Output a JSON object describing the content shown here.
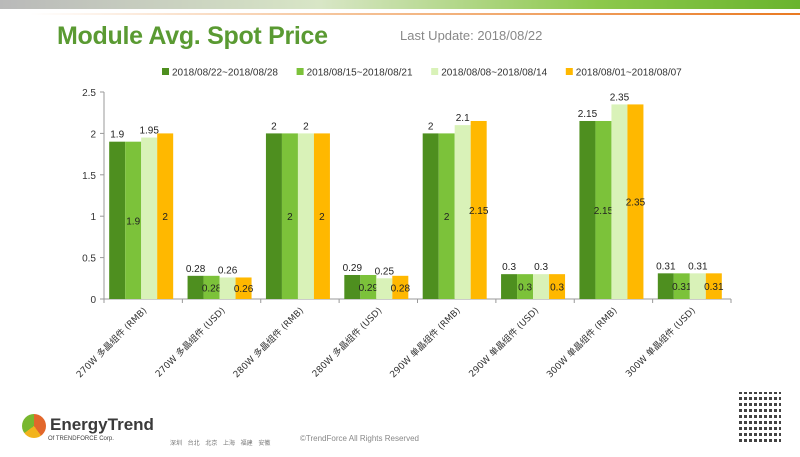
{
  "header": {
    "title": "Module Avg. Spot Price",
    "last_update": "Last Update: 2018/08/22"
  },
  "footer": {
    "brand": "EnergyTrend",
    "brand_sub": "Of TRENDFORCE Corp.",
    "cities": "深圳 台北 北京 上海 福建 安徽",
    "copyright": "©TrendForce All Rights Reserved"
  },
  "chart_data": {
    "type": "bar",
    "title": "",
    "xlabel": "",
    "ylabel": "",
    "ylim": [
      0,
      2.5
    ],
    "yticks": [
      "0",
      "0.5",
      "1",
      "1.5",
      "2",
      "2.5"
    ],
    "grid": false,
    "legend_position": "top",
    "categories": [
      "270W 多晶组件 (RMB)",
      "270W 多晶组件 (USD)",
      "280W 多晶组件 (RMB)",
      "280W 多晶组件 (USD)",
      "290W 单晶组件 (RMB)",
      "290W 单晶组件 (USD)",
      "300W 单晶组件 (RMB)",
      "300W 单晶组件 (USD)"
    ],
    "series": [
      {
        "name": "2018/08/22~2018/08/28",
        "color": "#4e8f1f",
        "values": [
          1.9,
          0.28,
          2,
          0.29,
          2,
          0.3,
          2.15,
          0.31
        ]
      },
      {
        "name": "2018/08/15~2018/08/21",
        "color": "#7cc23a",
        "values": [
          1.9,
          0.28,
          2,
          0.29,
          2,
          0.3,
          2.15,
          0.31
        ]
      },
      {
        "name": "2018/08/08~2018/08/14",
        "color": "#d9f2b8",
        "values": [
          1.95,
          0.26,
          2,
          0.25,
          2.1,
          0.3,
          2.35,
          0.31
        ]
      },
      {
        "name": "2018/08/01~2018/08/07",
        "color": "#ffb800",
        "values": [
          2,
          0.26,
          2,
          0.28,
          2.15,
          0.3,
          2.35,
          0.31
        ]
      }
    ]
  }
}
